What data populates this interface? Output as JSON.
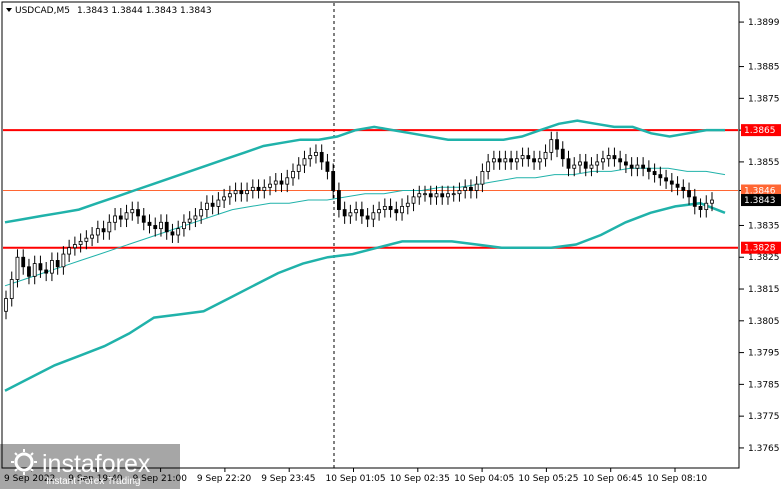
{
  "header": {
    "symbol": "USDCAD,M5",
    "ohlc": "1.3843 1.3844 1.3843 1.3843"
  },
  "branding": {
    "logo_text": "instaforex",
    "tagline": "Instant Forex Trading"
  },
  "chart_data": {
    "type": "candlestick",
    "title": "USDCAD,M5",
    "y_range": [
      1.3759,
      1.3905
    ],
    "y_ticks": [
      "1.3899",
      "1.3885",
      "1.3875",
      "1.3865",
      "1.3855",
      "1.3846",
      "1.3835",
      "1.3825",
      "1.3815",
      "1.3805",
      "1.3795",
      "1.3785",
      "1.3775",
      "1.3765"
    ],
    "x_ticks": [
      "9 Sep 2022",
      "9 Sep 19:40",
      "9 Sep 21:00",
      "9 Sep 22:20",
      "9 Sep 23:45",
      "10 Sep 01:05",
      "10 Sep 02:35",
      "10 Sep 04:05",
      "10 Sep 05:25",
      "10 Sep 06:45",
      "10 Sep 08:10"
    ],
    "levels": [
      {
        "value": 1.3865,
        "label": "1.3865",
        "color": "#ff0000",
        "style": "thick"
      },
      {
        "value": 1.3846,
        "label": "1.3846",
        "color": "#ff6633",
        "style": "thin"
      },
      {
        "value": 1.3828,
        "label": "1.3828",
        "color": "#ff0000",
        "style": "thick"
      }
    ],
    "current_price": {
      "value": 1.3843,
      "label": "1.3843"
    },
    "series": [
      {
        "name": "close",
        "color": "#000000",
        "values": [
          1.3812,
          1.3818,
          1.3825,
          1.3822,
          1.3819,
          1.3823,
          1.3821,
          1.382,
          1.3824,
          1.3822,
          1.3826,
          1.3828,
          1.3829,
          1.383,
          1.3831,
          1.3832,
          1.3834,
          1.3833,
          1.3836,
          1.3838,
          1.3837,
          1.3839,
          1.384,
          1.3838,
          1.3836,
          1.3835,
          1.3834,
          1.3836,
          1.3833,
          1.3832,
          1.3834,
          1.3836,
          1.3837,
          1.3838,
          1.384,
          1.3842,
          1.3841,
          1.3843,
          1.3844,
          1.3845,
          1.3846,
          1.3845,
          1.3846,
          1.3847,
          1.3846,
          1.3847,
          1.3848,
          1.3849,
          1.3848,
          1.385,
          1.3852,
          1.3854,
          1.3856,
          1.3857,
          1.3858,
          1.3855,
          1.3852,
          1.3846,
          1.384,
          1.3838,
          1.3839,
          1.384,
          1.3838,
          1.3837,
          1.3839,
          1.384,
          1.3841,
          1.384,
          1.3839,
          1.3841,
          1.3842,
          1.3844,
          1.3845,
          1.3845,
          1.3844,
          1.3845,
          1.3844,
          1.3845,
          1.3845,
          1.3846,
          1.3847,
          1.3846,
          1.3848,
          1.3852,
          1.3855,
          1.3856,
          1.3855,
          1.3856,
          1.3855,
          1.3856,
          1.3857,
          1.3856,
          1.3855,
          1.3856,
          1.3858,
          1.3862,
          1.3859,
          1.3856,
          1.3853,
          1.3854,
          1.3855,
          1.3853,
          1.3854,
          1.3855,
          1.3856,
          1.3857,
          1.3856,
          1.3855,
          1.3854,
          1.3853,
          1.3854,
          1.3853,
          1.3852,
          1.3851,
          1.385,
          1.3849,
          1.3848,
          1.3847,
          1.3846,
          1.3844,
          1.3841,
          1.384,
          1.3842,
          1.3843
        ]
      },
      {
        "name": "upper band",
        "color": "#20b2aa",
        "values": [
          1.3836,
          1.3837,
          1.3838,
          1.3839,
          1.384,
          1.3842,
          1.3844,
          1.3846,
          1.3848,
          1.385,
          1.3852,
          1.3854,
          1.3856,
          1.3858,
          1.386,
          1.3861,
          1.3862,
          1.3862,
          1.3863,
          1.3865,
          1.3866,
          1.3865,
          1.3864,
          1.3863,
          1.3862,
          1.3862,
          1.3862,
          1.3862,
          1.3863,
          1.3865,
          1.3867,
          1.3868,
          1.3867,
          1.3866,
          1.3866,
          1.3864,
          1.3863,
          1.3864,
          1.3865,
          1.3865
        ]
      },
      {
        "name": "middle band",
        "color": "#20b2aa",
        "values": [
          1.3816,
          1.3818,
          1.382,
          1.3822,
          1.3824,
          1.3826,
          1.3828,
          1.383,
          1.3832,
          1.3834,
          1.3836,
          1.3838,
          1.384,
          1.3841,
          1.3842,
          1.3842,
          1.3843,
          1.3843,
          1.3844,
          1.3845,
          1.3845,
          1.3846,
          1.3846,
          1.3847,
          1.3847,
          1.3848,
          1.3849,
          1.385,
          1.385,
          1.3851,
          1.3851,
          1.3852,
          1.3852,
          1.3853,
          1.3853,
          1.3853,
          1.3852,
          1.3852,
          1.3851
        ]
      },
      {
        "name": "lower band",
        "color": "#20b2aa",
        "values": [
          1.3783,
          1.3787,
          1.3791,
          1.3794,
          1.3797,
          1.3801,
          1.3806,
          1.3807,
          1.3808,
          1.3812,
          1.3816,
          1.382,
          1.3823,
          1.3825,
          1.3826,
          1.3828,
          1.383,
          1.383,
          1.383,
          1.3829,
          1.3828,
          1.3828,
          1.3828,
          1.3829,
          1.3832,
          1.3836,
          1.3839,
          1.3841,
          1.3842,
          1.3839
        ]
      }
    ]
  }
}
